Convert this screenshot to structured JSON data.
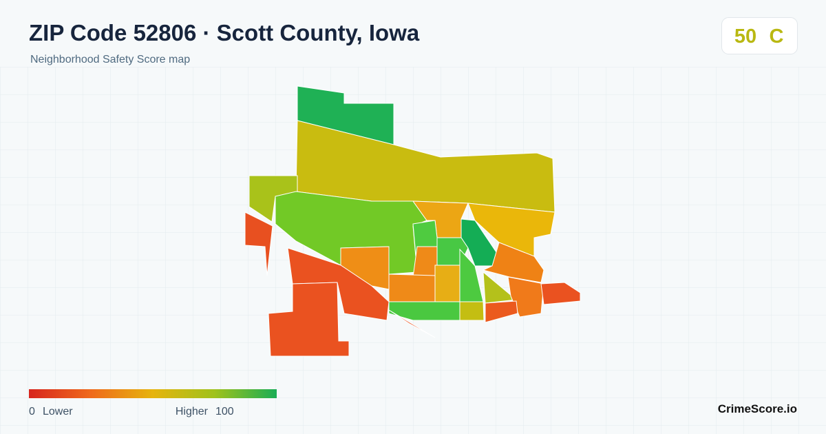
{
  "header": {
    "title": "ZIP Code 52806 · Scott County, Iowa",
    "subtitle": "Neighborhood Safety Score map"
  },
  "score": {
    "value": "50",
    "grade": "C"
  },
  "legend": {
    "min": "0",
    "min_label": "Lower",
    "max_label": "Higher",
    "max": "100"
  },
  "brand": "CrimeScore.io"
}
